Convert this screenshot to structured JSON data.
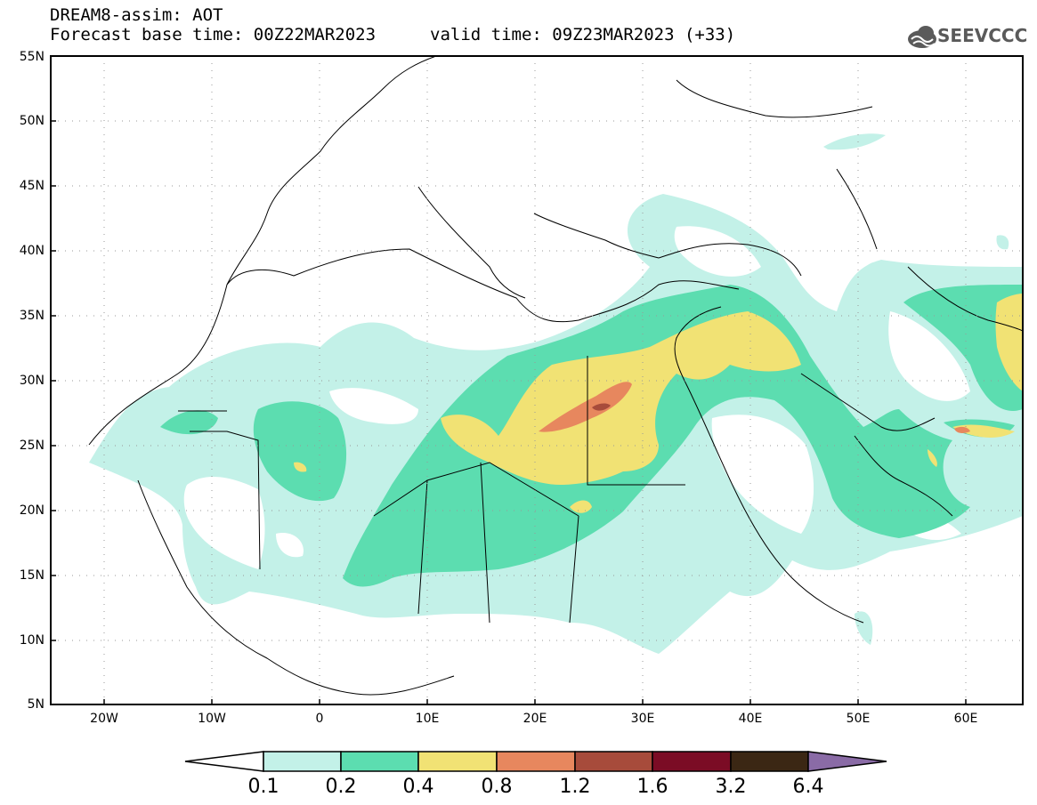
{
  "header": {
    "title": "DREAM8-assim: AOT",
    "base_time": "Forecast base time: 00Z22MAR2023",
    "valid_time": "valid time: 09Z23MAR2023 (+33)",
    "logo_text": "SEEVCCC"
  },
  "map": {
    "lat_labels": [
      "55N",
      "50N",
      "45N",
      "40N",
      "35N",
      "30N",
      "25N",
      "20N",
      "15N",
      "10N",
      "5N"
    ],
    "lon_labels": [
      "20W",
      "10W",
      "0",
      "10E",
      "20E",
      "30E",
      "40E",
      "50E",
      "60E"
    ],
    "extent": {
      "lon_min": -25,
      "lon_max": 65,
      "lat_min": 5,
      "lat_max": 55
    },
    "grid": "dotted"
  },
  "colorbar": {
    "labels": [
      "0.1",
      "0.2",
      "0.4",
      "0.8",
      "1.2",
      "1.6",
      "3.2",
      "6.4"
    ],
    "colors": [
      "#ffffff",
      "#c3f1e8",
      "#5cddb0",
      "#f1e274",
      "#e7875e",
      "#a74b3b",
      "#7b0c25",
      "#3b2714",
      "#8a6ba6"
    ]
  },
  "colors": {
    "level1": "#c3f1e8",
    "level2": "#5cddb0",
    "level3": "#f1e274",
    "level4": "#e7875e",
    "level5": "#a74b3b"
  }
}
